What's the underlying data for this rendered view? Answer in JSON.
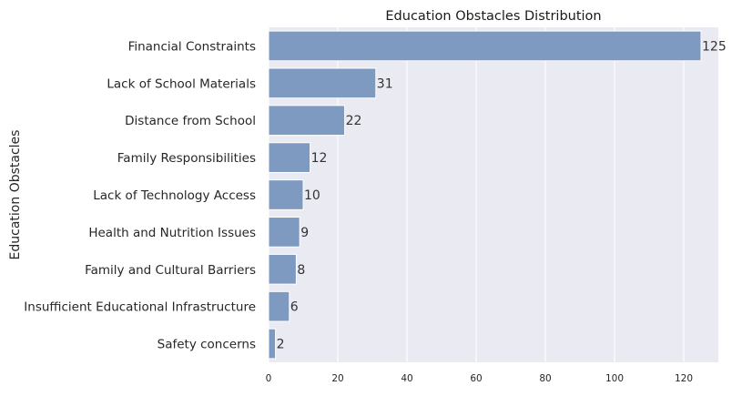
{
  "chart_data": {
    "type": "bar",
    "orientation": "horizontal",
    "title": "Education Obstacles Distribution",
    "xlabel": "",
    "ylabel": "Education Obstacles",
    "categories": [
      "Financial Constraints",
      "Lack of School Materials",
      "Distance from School",
      "Family Responsibilities",
      "Lack of Technology Access",
      "Health and Nutrition Issues",
      "Family and Cultural Barriers",
      "Insufficient Educational Infrastructure",
      "Safety concerns"
    ],
    "values": [
      125,
      31,
      22,
      12,
      10,
      9,
      8,
      6,
      2
    ],
    "xlim": [
      0,
      130
    ],
    "xticks": [
      0,
      20,
      40,
      60,
      80,
      100,
      120
    ],
    "grid": true,
    "bar_color": "#7f9ac1",
    "background_color": "#eaeaf2"
  }
}
